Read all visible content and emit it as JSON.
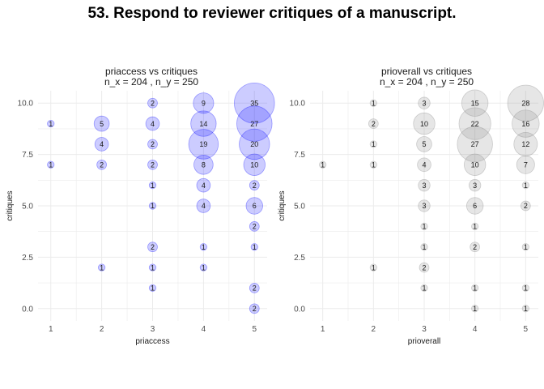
{
  "title": "53. Respond to reviewer critiques of a manuscript.",
  "chart_data": [
    {
      "type": "scatter",
      "title": "priaccess vs critiques",
      "subtitle": "n_x = 204 , n_y = 250",
      "xlabel": "priaccess",
      "ylabel": "critiques",
      "xlim": [
        0.75,
        5.25
      ],
      "ylim": [
        -0.6,
        10.6
      ],
      "x_ticks": [
        1,
        2,
        3,
        4,
        5
      ],
      "y_ticks": [
        "0.0",
        "2.5",
        "5.0",
        "7.5",
        "10.0"
      ],
      "grid": true,
      "color": "#0000ff",
      "points": [
        {
          "x": 3,
          "y": 10,
          "n": 2
        },
        {
          "x": 4,
          "y": 10,
          "n": 9
        },
        {
          "x": 5,
          "y": 10,
          "n": 35
        },
        {
          "x": 1,
          "y": 9,
          "n": 1
        },
        {
          "x": 2,
          "y": 9,
          "n": 5
        },
        {
          "x": 3,
          "y": 9,
          "n": 4
        },
        {
          "x": 4,
          "y": 9,
          "n": 14
        },
        {
          "x": 5,
          "y": 9,
          "n": 27
        },
        {
          "x": 2,
          "y": 8,
          "n": 4
        },
        {
          "x": 3,
          "y": 8,
          "n": 2
        },
        {
          "x": 4,
          "y": 8,
          "n": 19
        },
        {
          "x": 5,
          "y": 8,
          "n": 20
        },
        {
          "x": 1,
          "y": 7,
          "n": 1
        },
        {
          "x": 2,
          "y": 7,
          "n": 2
        },
        {
          "x": 3,
          "y": 7,
          "n": 2
        },
        {
          "x": 4,
          "y": 7,
          "n": 8
        },
        {
          "x": 5,
          "y": 7,
          "n": 10
        },
        {
          "x": 3,
          "y": 6,
          "n": 1
        },
        {
          "x": 4,
          "y": 6,
          "n": 4
        },
        {
          "x": 5,
          "y": 6,
          "n": 2
        },
        {
          "x": 3,
          "y": 5,
          "n": 1
        },
        {
          "x": 4,
          "y": 5,
          "n": 4
        },
        {
          "x": 5,
          "y": 5,
          "n": 6
        },
        {
          "x": 5,
          "y": 4,
          "n": 2
        },
        {
          "x": 3,
          "y": 3,
          "n": 2
        },
        {
          "x": 4,
          "y": 3,
          "n": 1
        },
        {
          "x": 5,
          "y": 3,
          "n": 1
        },
        {
          "x": 2,
          "y": 2,
          "n": 1
        },
        {
          "x": 3,
          "y": 2,
          "n": 1
        },
        {
          "x": 4,
          "y": 2,
          "n": 1
        },
        {
          "x": 3,
          "y": 1,
          "n": 1
        },
        {
          "x": 5,
          "y": 1,
          "n": 2
        },
        {
          "x": 5,
          "y": 0,
          "n": 2
        }
      ]
    },
    {
      "type": "scatter",
      "title": "prioverall vs critiques",
      "subtitle": "n_x = 204 , n_y = 250",
      "xlabel": "prioverall",
      "ylabel": "critiques",
      "xlim": [
        0.75,
        5.25
      ],
      "ylim": [
        -0.6,
        10.6
      ],
      "x_ticks": [
        1,
        2,
        3,
        4,
        5
      ],
      "y_ticks": [
        "0.0",
        "2.5",
        "5.0",
        "7.5",
        "10.0"
      ],
      "grid": true,
      "color": "#808080",
      "points": [
        {
          "x": 2,
          "y": 10,
          "n": 1
        },
        {
          "x": 3,
          "y": 10,
          "n": 3
        },
        {
          "x": 4,
          "y": 10,
          "n": 15
        },
        {
          "x": 5,
          "y": 10,
          "n": 28
        },
        {
          "x": 2,
          "y": 9,
          "n": 2
        },
        {
          "x": 3,
          "y": 9,
          "n": 10
        },
        {
          "x": 4,
          "y": 9,
          "n": 22
        },
        {
          "x": 5,
          "y": 9,
          "n": 16
        },
        {
          "x": 2,
          "y": 8,
          "n": 1
        },
        {
          "x": 3,
          "y": 8,
          "n": 5
        },
        {
          "x": 4,
          "y": 8,
          "n": 27
        },
        {
          "x": 5,
          "y": 8,
          "n": 12
        },
        {
          "x": 1,
          "y": 7,
          "n": 1
        },
        {
          "x": 2,
          "y": 7,
          "n": 1
        },
        {
          "x": 3,
          "y": 7,
          "n": 4
        },
        {
          "x": 4,
          "y": 7,
          "n": 10
        },
        {
          "x": 5,
          "y": 7,
          "n": 7
        },
        {
          "x": 3,
          "y": 6,
          "n": 3
        },
        {
          "x": 4,
          "y": 6,
          "n": 3
        },
        {
          "x": 5,
          "y": 6,
          "n": 1
        },
        {
          "x": 3,
          "y": 5,
          "n": 3
        },
        {
          "x": 4,
          "y": 5,
          "n": 6
        },
        {
          "x": 5,
          "y": 5,
          "n": 2
        },
        {
          "x": 3,
          "y": 4,
          "n": 1
        },
        {
          "x": 4,
          "y": 4,
          "n": 1
        },
        {
          "x": 3,
          "y": 3,
          "n": 1
        },
        {
          "x": 4,
          "y": 3,
          "n": 2
        },
        {
          "x": 5,
          "y": 3,
          "n": 1
        },
        {
          "x": 2,
          "y": 2,
          "n": 1
        },
        {
          "x": 3,
          "y": 2,
          "n": 2
        },
        {
          "x": 3,
          "y": 1,
          "n": 1
        },
        {
          "x": 4,
          "y": 1,
          "n": 1
        },
        {
          "x": 5,
          "y": 1,
          "n": 1
        },
        {
          "x": 4,
          "y": 0,
          "n": 1
        },
        {
          "x": 5,
          "y": 0,
          "n": 1
        }
      ]
    }
  ]
}
